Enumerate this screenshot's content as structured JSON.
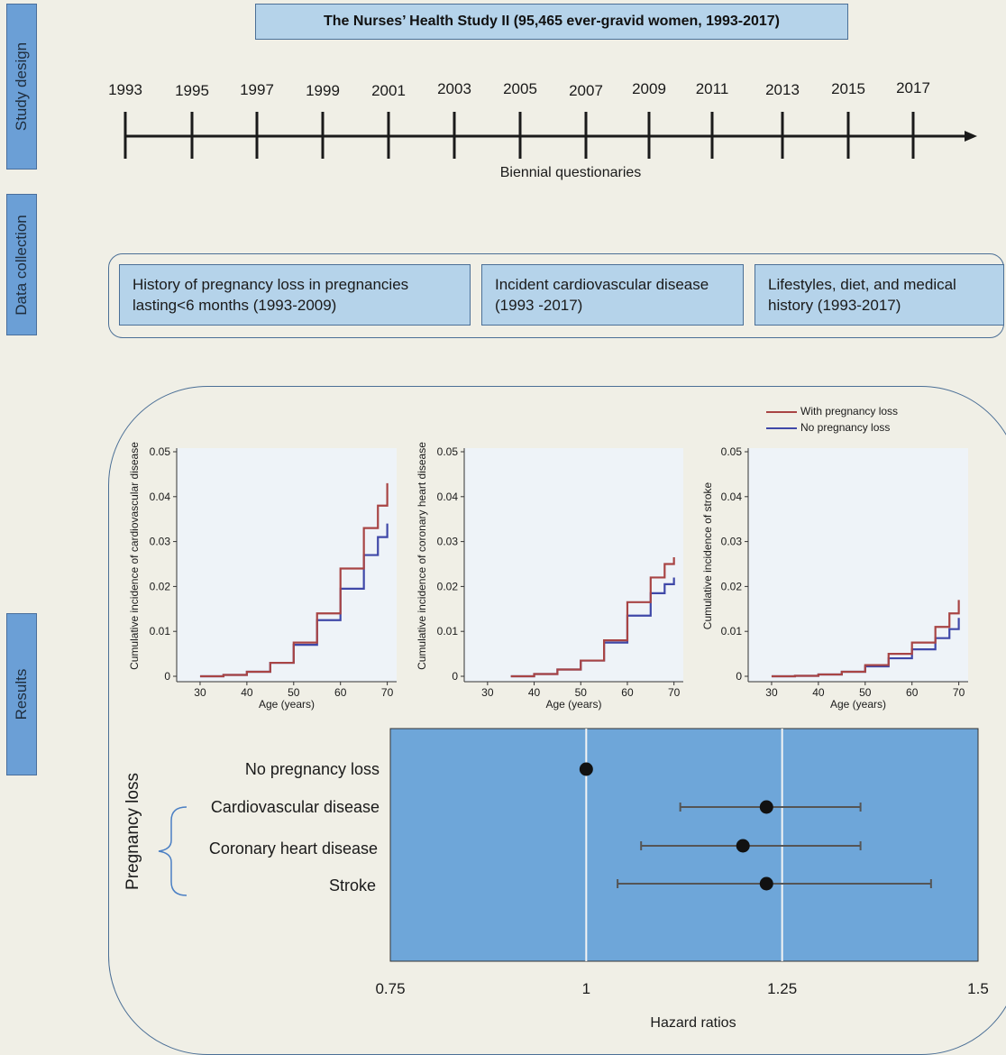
{
  "sections": {
    "study_design": "Study design",
    "data_collection": "Data collection",
    "results": "Results"
  },
  "title": "The Nurses’ Health Study II (95,465 ever-gravid women, 1993-2017)",
  "timeline": {
    "years": [
      "1993",
      "1995",
      "1997",
      "1999",
      "2001",
      "2003",
      "2005",
      "2007",
      "2009",
      "2011",
      "2013",
      "2015",
      "2017"
    ],
    "caption": "Biennial questionaries"
  },
  "data_collection": {
    "boxes": [
      "History of pregnancy loss in pregnancies lasting<6 months (1993-2009)",
      "Incident cardiovascular disease (1993 -2017)",
      "Lifestyles, diet, and medical history (1993-2017)"
    ]
  },
  "legend": {
    "with_loss": "With pregnancy loss",
    "no_loss": "No pregnancy loss"
  },
  "colors": {
    "with_loss": "#a84444",
    "no_loss": "#3f48a8",
    "panel_bg": "#eef3f8",
    "forest_bg": "#6ea6d9",
    "tab_bg": "#6b9fd6"
  },
  "forest_labels": {
    "group": "Pregnancy loss"
  },
  "chart_data": [
    {
      "type": "line",
      "xlabel": "Age (years)",
      "ylabel": "Cumulative incidence of cardiovascular disease",
      "xlim": [
        25,
        72
      ],
      "ylim": [
        0,
        0.05
      ],
      "xticks": [
        "30",
        "40",
        "50",
        "60",
        "70"
      ],
      "yticks": [
        "0",
        "0.01",
        "0.02",
        "0.03",
        "0.04",
        "0.05"
      ],
      "series": [
        {
          "name": "With pregnancy loss",
          "x": [
            30,
            35,
            40,
            45,
            50,
            55,
            60,
            65,
            68,
            70
          ],
          "y": [
            0,
            0.0003,
            0.001,
            0.003,
            0.0075,
            0.014,
            0.024,
            0.033,
            0.038,
            0.043
          ]
        },
        {
          "name": "No pregnancy loss",
          "x": [
            30,
            35,
            40,
            45,
            50,
            55,
            60,
            65,
            68,
            70
          ],
          "y": [
            0,
            0.0003,
            0.001,
            0.003,
            0.007,
            0.0125,
            0.0195,
            0.027,
            0.031,
            0.034
          ]
        }
      ]
    },
    {
      "type": "line",
      "xlabel": "Age (years)",
      "ylabel": "Cumulative incidence of coronary heart disease",
      "xlim": [
        25,
        72
      ],
      "ylim": [
        0,
        0.05
      ],
      "xticks": [
        "30",
        "40",
        "50",
        "60",
        "70"
      ],
      "yticks": [
        "0",
        "0.01",
        "0.02",
        "0.03",
        "0.04",
        "0.05"
      ],
      "series": [
        {
          "name": "With pregnancy loss",
          "x": [
            35,
            40,
            45,
            50,
            55,
            60,
            65,
            68,
            70
          ],
          "y": [
            0,
            0.0005,
            0.0015,
            0.0035,
            0.008,
            0.0165,
            0.022,
            0.025,
            0.0265
          ]
        },
        {
          "name": "No pregnancy loss",
          "x": [
            35,
            40,
            45,
            50,
            55,
            60,
            65,
            68,
            70
          ],
          "y": [
            0,
            0.0005,
            0.0015,
            0.0035,
            0.0075,
            0.0135,
            0.0185,
            0.0205,
            0.022
          ]
        }
      ]
    },
    {
      "type": "line",
      "xlabel": "Age (years)",
      "ylabel": "Cumulative incidence of stroke",
      "xlim": [
        25,
        72
      ],
      "ylim": [
        0,
        0.05
      ],
      "xticks": [
        "30",
        "40",
        "50",
        "60",
        "70"
      ],
      "yticks": [
        "0",
        "0.01",
        "0.02",
        "0.03",
        "0.04",
        "0.05"
      ],
      "series": [
        {
          "name": "With pregnancy loss",
          "x": [
            30,
            35,
            40,
            45,
            50,
            55,
            60,
            65,
            68,
            70
          ],
          "y": [
            0,
            0.0001,
            0.0004,
            0.001,
            0.0025,
            0.005,
            0.0075,
            0.011,
            0.014,
            0.017
          ]
        },
        {
          "name": "No pregnancy loss",
          "x": [
            30,
            35,
            40,
            45,
            50,
            55,
            60,
            65,
            68,
            70
          ],
          "y": [
            0,
            0.0001,
            0.0004,
            0.001,
            0.0022,
            0.004,
            0.006,
            0.0085,
            0.0105,
            0.013
          ]
        }
      ]
    },
    {
      "type": "scatter",
      "xlabel": "Hazard ratios",
      "xlim": [
        0.75,
        1.5
      ],
      "xticks": [
        "0.75",
        "1",
        "1.25",
        "1.5"
      ],
      "reference_lines": [
        1,
        1.25
      ],
      "rows": [
        {
          "label": "No pregnancy loss",
          "hr": 1.0,
          "lo": null,
          "hi": null
        },
        {
          "label": "Cardiovascular disease",
          "hr": 1.23,
          "lo": 1.12,
          "hi": 1.35
        },
        {
          "label": "Coronary heart disease",
          "hr": 1.2,
          "lo": 1.07,
          "hi": 1.35
        },
        {
          "label": "Stroke",
          "hr": 1.23,
          "lo": 1.04,
          "hi": 1.44
        }
      ]
    }
  ]
}
